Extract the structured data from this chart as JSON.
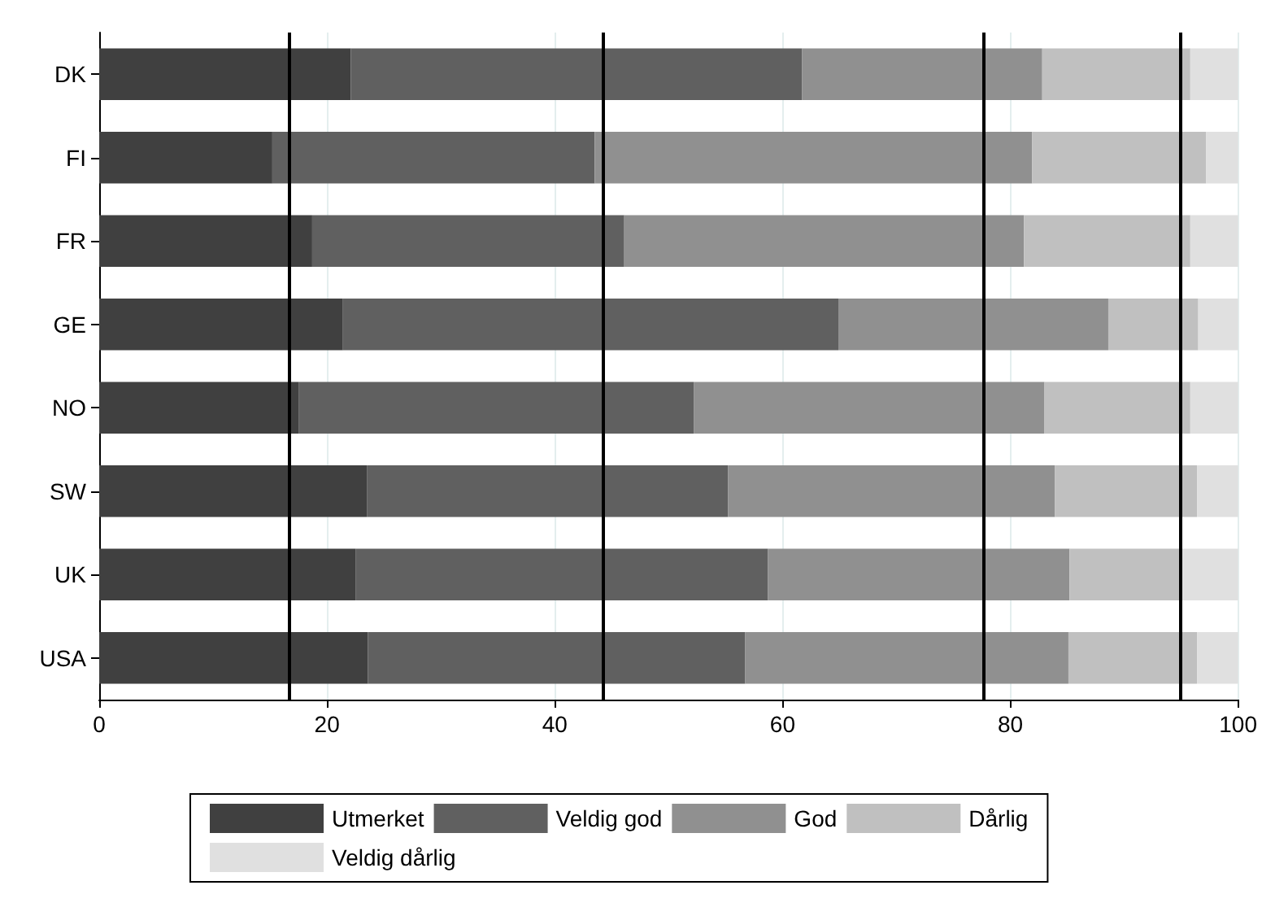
{
  "chart_data": {
    "type": "bar",
    "orientation": "horizontal",
    "stacked": true,
    "categories": [
      "DK",
      "FI",
      "FR",
      "GE",
      "NO",
      "SW",
      "UK",
      "USA"
    ],
    "series": [
      {
        "name": "Utmerket",
        "color": "#404040",
        "values": [
          22.1,
          15.2,
          18.7,
          21.4,
          17.5,
          23.5,
          22.5,
          23.6
        ]
      },
      {
        "name": "Veldig god",
        "color": "#606060",
        "values": [
          39.6,
          28.3,
          27.4,
          43.5,
          34.7,
          31.7,
          36.2,
          33.1
        ]
      },
      {
        "name": "God",
        "color": "#909090",
        "values": [
          21.1,
          38.4,
          35.1,
          23.7,
          30.8,
          28.7,
          26.5,
          28.4
        ]
      },
      {
        "name": "Dårlig",
        "color": "#c0c0c0",
        "values": [
          13.0,
          15.3,
          14.6,
          7.9,
          12.8,
          12.5,
          9.8,
          11.3
        ]
      },
      {
        "name": "Veldig dårlig",
        "color": "#e0e0e0",
        "values": [
          4.2,
          2.8,
          4.2,
          3.5,
          4.2,
          3.6,
          5.0,
          3.6
        ]
      }
    ],
    "xlim": [
      0,
      100
    ],
    "xticks": [
      0,
      20,
      40,
      60,
      80,
      100
    ],
    "grid": "x",
    "legend": "bottom",
    "ref_lines": [
      {
        "axis": "x",
        "value": 16.7,
        "color": "#000000"
      },
      {
        "axis": "x",
        "value": 44.2,
        "color": "#000000"
      },
      {
        "axis": "x",
        "value": 77.6,
        "color": "#000000"
      },
      {
        "axis": "x",
        "value": 94.9,
        "color": "#000000"
      }
    ]
  }
}
